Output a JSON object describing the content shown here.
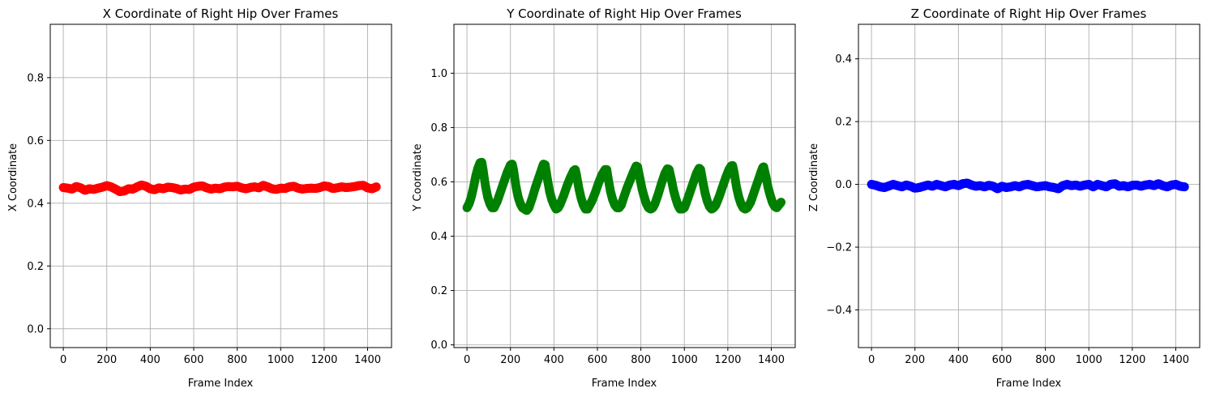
{
  "chart_data": [
    {
      "type": "scatter",
      "title": "X Coordinate of Right Hip Over Frames",
      "xlabel": "Frame Index",
      "ylabel": "X Coordinate",
      "xlim": [
        -60,
        1510
      ],
      "ylim": [
        -0.06,
        0.97
      ],
      "xticks": [
        0,
        200,
        400,
        600,
        800,
        1000,
        1200,
        1400
      ],
      "yticks": [
        0.0,
        0.2,
        0.4,
        0.6,
        0.8
      ],
      "ytick_labels": [
        "0.0",
        "0.2",
        "0.4",
        "0.6",
        "0.8"
      ],
      "grid": true,
      "color": "#ff0000",
      "series": [
        {
          "x": [
            0,
            20,
            40,
            60,
            80,
            100,
            120,
            140,
            160,
            180,
            200,
            220,
            240,
            260,
            280,
            300,
            320,
            340,
            360,
            380,
            400,
            420,
            440,
            460,
            480,
            500,
            520,
            540,
            560,
            580,
            600,
            620,
            640,
            660,
            680,
            700,
            720,
            740,
            760,
            780,
            800,
            820,
            840,
            860,
            880,
            900,
            920,
            940,
            960,
            980,
            1000,
            1020,
            1040,
            1060,
            1080,
            1100,
            1120,
            1140,
            1160,
            1180,
            1200,
            1220,
            1240,
            1260,
            1280,
            1300,
            1320,
            1340,
            1360,
            1380,
            1400,
            1420,
            1440
          ],
          "y": [
            0.45,
            0.448,
            0.445,
            0.453,
            0.449,
            0.441,
            0.446,
            0.444,
            0.448,
            0.451,
            0.456,
            0.452,
            0.445,
            0.437,
            0.439,
            0.446,
            0.445,
            0.452,
            0.458,
            0.454,
            0.446,
            0.443,
            0.449,
            0.446,
            0.451,
            0.45,
            0.447,
            0.442,
            0.445,
            0.444,
            0.451,
            0.454,
            0.455,
            0.449,
            0.445,
            0.448,
            0.446,
            0.451,
            0.453,
            0.452,
            0.454,
            0.449,
            0.446,
            0.45,
            0.452,
            0.449,
            0.457,
            0.452,
            0.446,
            0.444,
            0.448,
            0.447,
            0.452,
            0.454,
            0.448,
            0.445,
            0.447,
            0.448,
            0.447,
            0.45,
            0.455,
            0.453,
            0.447,
            0.449,
            0.452,
            0.45,
            0.451,
            0.453,
            0.456,
            0.457,
            0.449,
            0.446,
            0.452
          ]
        }
      ]
    },
    {
      "type": "scatter",
      "title": "Y Coordinate of Right Hip Over Frames",
      "xlabel": "Frame Index",
      "ylabel": "Y Coordinate",
      "xlim": [
        -60,
        1510
      ],
      "ylim": [
        -0.01,
        1.18
      ],
      "xticks": [
        0,
        200,
        400,
        600,
        800,
        1000,
        1200,
        1400
      ],
      "yticks": [
        0.0,
        0.2,
        0.4,
        0.6,
        0.8,
        1.0
      ],
      "ytick_labels": [
        "0.0",
        "0.2",
        "0.4",
        "0.6",
        "0.8",
        "1.0"
      ],
      "grid": true,
      "color": "#008000",
      "series": [
        {
          "x": [
            0,
            10,
            20,
            30,
            40,
            50,
            60,
            68,
            75,
            85,
            95,
            105,
            115,
            125,
            140,
            155,
            170,
            185,
            200,
            208,
            215,
            225,
            235,
            245,
            255,
            265,
            275,
            285,
            300,
            315,
            330,
            345,
            352,
            360,
            370,
            380,
            390,
            400,
            410,
            420,
            430,
            445,
            460,
            475,
            490,
            498,
            505,
            515,
            525,
            535,
            545,
            555,
            565,
            575,
            590,
            605,
            620,
            635,
            643,
            650,
            660,
            670,
            680,
            690,
            700,
            710,
            720,
            735,
            750,
            765,
            778,
            785,
            795,
            805,
            815,
            825,
            835,
            845,
            855,
            865,
            880,
            895,
            910,
            922,
            930,
            940,
            950,
            960,
            970,
            980,
            990,
            1000,
            1010,
            1025,
            1040,
            1055,
            1068,
            1075,
            1085,
            1095,
            1105,
            1115,
            1125,
            1135,
            1145,
            1160,
            1175,
            1190,
            1205,
            1215,
            1222,
            1230,
            1240,
            1250,
            1260,
            1270,
            1280,
            1290,
            1305,
            1320,
            1335,
            1350,
            1360,
            1365,
            1375,
            1385,
            1395,
            1405,
            1415,
            1425,
            1435,
            1445
          ],
          "y": [
            0.505,
            0.52,
            0.545,
            0.58,
            0.62,
            0.65,
            0.67,
            0.672,
            0.64,
            0.585,
            0.545,
            0.52,
            0.505,
            0.505,
            0.53,
            0.565,
            0.6,
            0.635,
            0.662,
            0.665,
            0.64,
            0.585,
            0.545,
            0.52,
            0.505,
            0.5,
            0.495,
            0.505,
            0.54,
            0.58,
            0.615,
            0.65,
            0.665,
            0.662,
            0.61,
            0.565,
            0.535,
            0.515,
            0.5,
            0.505,
            0.52,
            0.55,
            0.585,
            0.615,
            0.64,
            0.645,
            0.62,
            0.575,
            0.54,
            0.515,
            0.5,
            0.5,
            0.515,
            0.53,
            0.56,
            0.595,
            0.625,
            0.645,
            0.645,
            0.61,
            0.565,
            0.535,
            0.515,
            0.505,
            0.505,
            0.515,
            0.54,
            0.575,
            0.605,
            0.635,
            0.658,
            0.655,
            0.615,
            0.575,
            0.545,
            0.52,
            0.505,
            0.5,
            0.505,
            0.52,
            0.555,
            0.595,
            0.63,
            0.648,
            0.645,
            0.61,
            0.57,
            0.54,
            0.515,
            0.5,
            0.5,
            0.505,
            0.525,
            0.56,
            0.595,
            0.63,
            0.65,
            0.645,
            0.6,
            0.56,
            0.53,
            0.51,
            0.5,
            0.505,
            0.515,
            0.545,
            0.58,
            0.615,
            0.645,
            0.658,
            0.66,
            0.63,
            0.58,
            0.545,
            0.52,
            0.505,
            0.5,
            0.505,
            0.525,
            0.56,
            0.595,
            0.63,
            0.652,
            0.655,
            0.62,
            0.58,
            0.55,
            0.525,
            0.51,
            0.505,
            0.515,
            0.525
          ]
        }
      ]
    },
    {
      "type": "scatter",
      "title": "Z Coordinate of Right Hip Over Frames",
      "xlabel": "Frame Index",
      "ylabel": "Z Coordinate",
      "xlim": [
        -60,
        1510
      ],
      "ylim": [
        -0.52,
        0.51
      ],
      "xticks": [
        0,
        200,
        400,
        600,
        800,
        1000,
        1200,
        1400
      ],
      "yticks": [
        -0.4,
        -0.2,
        0.0,
        0.2,
        0.4
      ],
      "ytick_labels": [
        "−0.4",
        "−0.2",
        "0.0",
        "0.2",
        "0.4"
      ],
      "grid": true,
      "color": "#0000ff",
      "series": [
        {
          "x": [
            0,
            20,
            40,
            60,
            80,
            100,
            120,
            140,
            160,
            180,
            200,
            220,
            240,
            260,
            280,
            300,
            320,
            340,
            360,
            380,
            400,
            420,
            440,
            460,
            480,
            500,
            520,
            540,
            560,
            580,
            600,
            620,
            640,
            660,
            680,
            700,
            720,
            740,
            760,
            780,
            800,
            820,
            840,
            860,
            880,
            900,
            920,
            940,
            960,
            980,
            1000,
            1020,
            1040,
            1060,
            1080,
            1100,
            1120,
            1140,
            1160,
            1180,
            1200,
            1220,
            1240,
            1260,
            1280,
            1300,
            1320,
            1340,
            1360,
            1380,
            1400,
            1420,
            1440
          ],
          "y": [
            0.0,
            -0.003,
            -0.008,
            -0.01,
            -0.005,
            0.0,
            -0.004,
            -0.008,
            -0.002,
            -0.006,
            -0.012,
            -0.01,
            -0.006,
            -0.002,
            -0.006,
            0.0,
            -0.004,
            -0.008,
            -0.002,
            0.0,
            -0.004,
            0.002,
            0.004,
            -0.002,
            -0.006,
            -0.004,
            -0.008,
            -0.003,
            -0.006,
            -0.014,
            -0.006,
            -0.01,
            -0.008,
            -0.004,
            -0.008,
            -0.002,
            0.0,
            -0.004,
            -0.008,
            -0.006,
            -0.004,
            -0.008,
            -0.01,
            -0.014,
            -0.004,
            0.0,
            -0.004,
            -0.002,
            -0.006,
            -0.002,
            0.0,
            -0.008,
            0.0,
            -0.004,
            -0.008,
            0.0,
            0.002,
            -0.006,
            -0.004,
            -0.008,
            -0.003,
            -0.002,
            -0.006,
            -0.002,
            0.0,
            -0.004,
            0.002,
            -0.004,
            -0.008,
            -0.002,
            0.0,
            -0.006,
            -0.008
          ]
        }
      ]
    }
  ]
}
